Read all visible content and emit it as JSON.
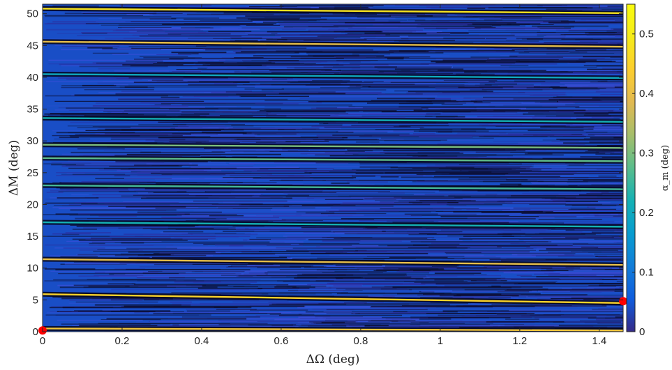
{
  "chart_data": {
    "type": "heatmap",
    "title": "",
    "xlabel": "ΔΩ (deg)",
    "ylabel": "ΔM (deg)",
    "colorbar_label": "α_m (deg)",
    "colormap": "parula",
    "xlim": [
      0,
      1.46
    ],
    "ylim": [
      0,
      51.5
    ],
    "clim": [
      0,
      0.55
    ],
    "x_ticks": [
      0,
      0.2,
      0.4,
      0.6,
      0.8,
      1,
      1.2,
      1.4
    ],
    "x_tick_labels": [
      "0",
      "0.2",
      "0.4",
      "0.6",
      "0.8",
      "1",
      "1.2",
      "1.4"
    ],
    "y_ticks": [
      0,
      5,
      10,
      15,
      20,
      25,
      30,
      35,
      40,
      45,
      50
    ],
    "y_tick_labels": [
      "0",
      "5",
      "10",
      "15",
      "20",
      "25",
      "30",
      "35",
      "40",
      "45",
      "50"
    ],
    "colorbar_ticks": [
      0,
      0.1,
      0.2,
      0.3,
      0.4,
      0.5
    ],
    "colorbar_tick_labels": [
      "0",
      "0.1",
      "0.2",
      "0.3",
      "0.4",
      "0.5"
    ],
    "background_value": 0.04,
    "bands": [
      {
        "y0": 0.5,
        "y1": 0.2,
        "value": 0.42
      },
      {
        "y0": 5.9,
        "y1": 4.5,
        "value": 0.45
      },
      {
        "y0": 11.4,
        "y1": 10.5,
        "value": 0.4
      },
      {
        "y0": 17.2,
        "y1": 16.5,
        "value": 0.22
      },
      {
        "y0": 23.0,
        "y1": 22.4,
        "value": 0.26
      },
      {
        "y0": 27.3,
        "y1": 26.8,
        "value": 0.28
      },
      {
        "y0": 29.4,
        "y1": 28.9,
        "value": 0.3
      },
      {
        "y0": 33.6,
        "y1": 33.0,
        "value": 0.22
      },
      {
        "y0": 40.5,
        "y1": 39.9,
        "value": 0.2
      },
      {
        "y0": 45.6,
        "y1": 44.8,
        "value": 0.4
      },
      {
        "y0": 50.8,
        "y1": 50.1,
        "value": 0.48
      }
    ],
    "markers": [
      {
        "x": 0,
        "y": 0.2,
        "color": "#ff0000"
      },
      {
        "x": 1.46,
        "y": 4.8,
        "color": "#ff0000"
      }
    ]
  }
}
